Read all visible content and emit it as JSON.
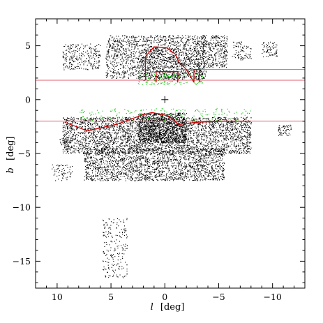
{
  "chart_data": {
    "type": "scatter",
    "xlabel_var": "l",
    "xlabel_unit": "[deg]",
    "ylabel_var": "b",
    "ylabel_unit": "[deg]",
    "xlim": [
      12.0,
      -13.0
    ],
    "ylim": [
      -17.5,
      7.5
    ],
    "x_ticks": [
      10,
      5,
      0,
      -5,
      -10
    ],
    "x_tick_labels": [
      "10",
      "5",
      "0",
      "−5",
      "−10"
    ],
    "y_ticks": [
      5,
      0,
      -5,
      -10,
      -15
    ],
    "y_tick_labels": [
      "5",
      "0",
      "−5",
      "−10",
      "−15"
    ],
    "grid": false,
    "center_marker": {
      "l": 0,
      "b": 0,
      "symbol": "+"
    },
    "series": [
      {
        "role": "northern-field-stars",
        "color": "#000000",
        "regions": [
          {
            "l_range": [
              5.5,
              -3.8
            ],
            "b_range": [
              2.0,
              6.0
            ],
            "count": 1500
          },
          {
            "l_range": [
              2.5,
              -3.5
            ],
            "b_range": [
              1.8,
              4.8
            ],
            "count": 500
          },
          {
            "l_range": [
              9.5,
              6.0
            ],
            "b_range": [
              2.8,
              5.2
            ],
            "count": 260
          },
          {
            "l_range": [
              -3.5,
              -5.8
            ],
            "b_range": [
              3.0,
              6.0
            ],
            "count": 330
          },
          {
            "l_range": [
              -6.2,
              -7.2
            ],
            "b_range": [
              3.8,
              5.5
            ],
            "count": 45
          },
          {
            "l_range": [
              -7.0,
              -8.0
            ],
            "b_range": [
              3.7,
              5.0
            ],
            "count": 40
          },
          {
            "l_range": [
              -9.0,
              -10.4
            ],
            "b_range": [
              4.0,
              5.4
            ],
            "count": 70
          }
        ]
      },
      {
        "role": "southern-field-stars",
        "color": "#000000",
        "regions": [
          {
            "l_range": [
              9.5,
              -8.0
            ],
            "b_range": [
              -5.0,
              -1.6
            ],
            "count": 3200
          },
          {
            "l_range": [
              7.5,
              -5.5
            ],
            "b_range": [
              -7.5,
              -4.5
            ],
            "count": 2000
          },
          {
            "l_range": [
              2.5,
              -2.0
            ],
            "b_range": [
              -4.0,
              -1.2
            ],
            "count": 1200
          },
          {
            "l_range": [
              -10.5,
              -11.7
            ],
            "b_range": [
              -3.3,
              -2.3
            ],
            "count": 60
          },
          {
            "l_range": [
              9.8,
              8.5
            ],
            "b_range": [
              -4.2,
              -3.6
            ],
            "count": 20
          },
          {
            "l_range": [
              10.5,
              8.6
            ],
            "b_range": [
              -7.5,
              -6.0
            ],
            "count": 60
          }
        ]
      },
      {
        "role": "high-latitude-field-stars",
        "color": "#000000",
        "regions": [
          {
            "l_range": [
              5.8,
              3.5
            ],
            "b_range": [
              -16.5,
              -11.0
            ],
            "count": 200
          }
        ]
      },
      {
        "role": "edge-stars",
        "color": "#00c000",
        "regions": [
          {
            "l_range": [
              2.5,
              -3.5
            ],
            "b_range": [
              1.4,
              2.5
            ],
            "count": 160
          },
          {
            "l_range": [
              8.0,
              -8.0
            ],
            "b_range": [
              -2.0,
              -0.8
            ],
            "count": 210
          }
        ]
      }
    ],
    "boundaries": {
      "horizontal_lines_b": [
        1.8,
        -2.0,
        2.8
      ],
      "horizontal_line_color": "#e06070",
      "northern_outline": [
        [
          1.8,
          1.8
        ],
        [
          1.8,
          4.0
        ],
        [
          1.0,
          4.9
        ],
        [
          -0.2,
          4.8
        ],
        [
          -1.0,
          4.2
        ],
        [
          -1.3,
          3.5
        ],
        [
          -2.0,
          2.8
        ],
        [
          -2.7,
          1.6
        ]
      ],
      "northern_box_1": [
        [
          0.8,
          1.6
        ],
        [
          0.8,
          2.6
        ],
        [
          -1.2,
          2.6
        ],
        [
          -1.2,
          1.6
        ]
      ],
      "northern_box_2": [
        [
          -2.7,
          1.6
        ],
        [
          -2.7,
          2.8
        ],
        [
          -3.2,
          2.8
        ],
        [
          -3.2,
          1.6
        ]
      ],
      "southern_outline": [
        [
          9.3,
          -2.1
        ],
        [
          7.2,
          -2.9
        ],
        [
          4.5,
          -2.3
        ],
        [
          2.0,
          -1.4
        ],
        [
          1.2,
          -1.2
        ],
        [
          -0.3,
          -1.5
        ],
        [
          -1.3,
          -2.3
        ],
        [
          -3.0,
          -2.1
        ],
        [
          -5.5,
          -2.0
        ],
        [
          -8.0,
          -2.0
        ]
      ],
      "outline_color": "#cc0000"
    }
  }
}
